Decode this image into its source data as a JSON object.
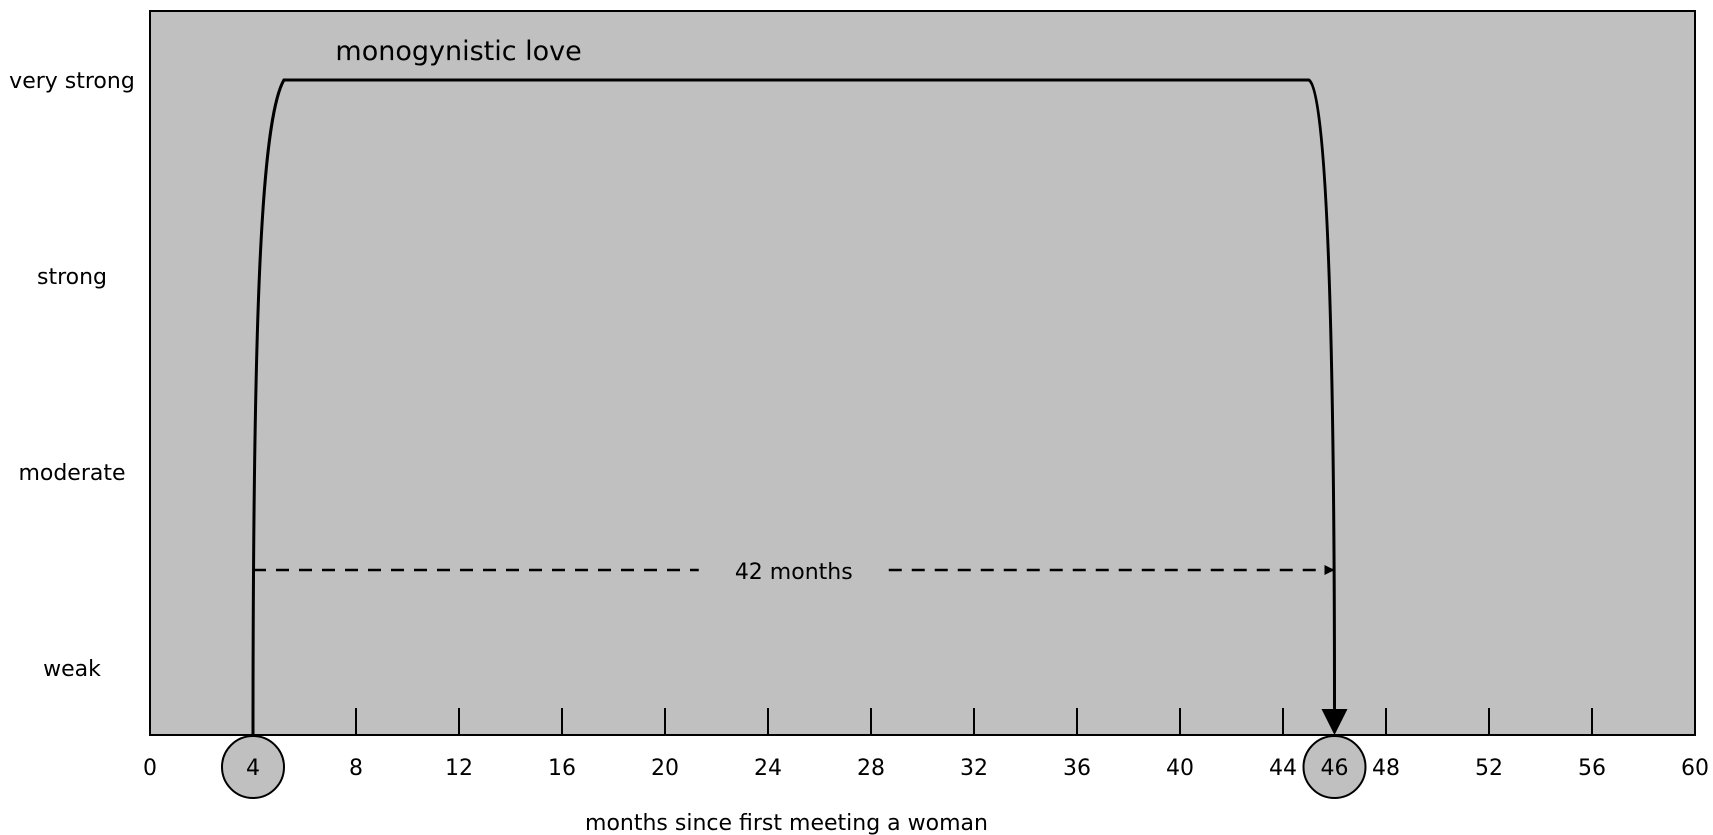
{
  "chart_data": {
    "type": "line",
    "title": "",
    "xlabel": "months since first meeting a woman",
    "ylabel": "",
    "xlim": [
      0,
      60
    ],
    "ylim": [
      0,
      4
    ],
    "x_ticks": [
      0,
      4,
      8,
      12,
      16,
      20,
      24,
      28,
      32,
      36,
      40,
      44,
      46,
      48,
      52,
      56,
      60
    ],
    "highlighted_ticks": [
      4,
      46
    ],
    "y_levels": [
      {
        "label": "weak",
        "value": 1
      },
      {
        "label": "strong",
        "value": 3
      },
      {
        "label": "moderate",
        "value": 2
      },
      {
        "label": "very strong",
        "value": 4
      }
    ],
    "series": [
      {
        "name": "monogynistic love",
        "points": [
          {
            "x": 4,
            "y": 0
          },
          {
            "x": 5.2,
            "y": 4
          },
          {
            "x": 45,
            "y": 4
          },
          {
            "x": 46,
            "y": 0
          }
        ]
      }
    ],
    "annotations": {
      "duration_label": "42 months",
      "duration_from": 4,
      "duration_to": 46,
      "duration_level": 1.5
    },
    "grid": false,
    "colors": {
      "plot_background": "#c0c0c0",
      "line": "#000000",
      "highlight_circle": "#c0c0c0"
    }
  }
}
